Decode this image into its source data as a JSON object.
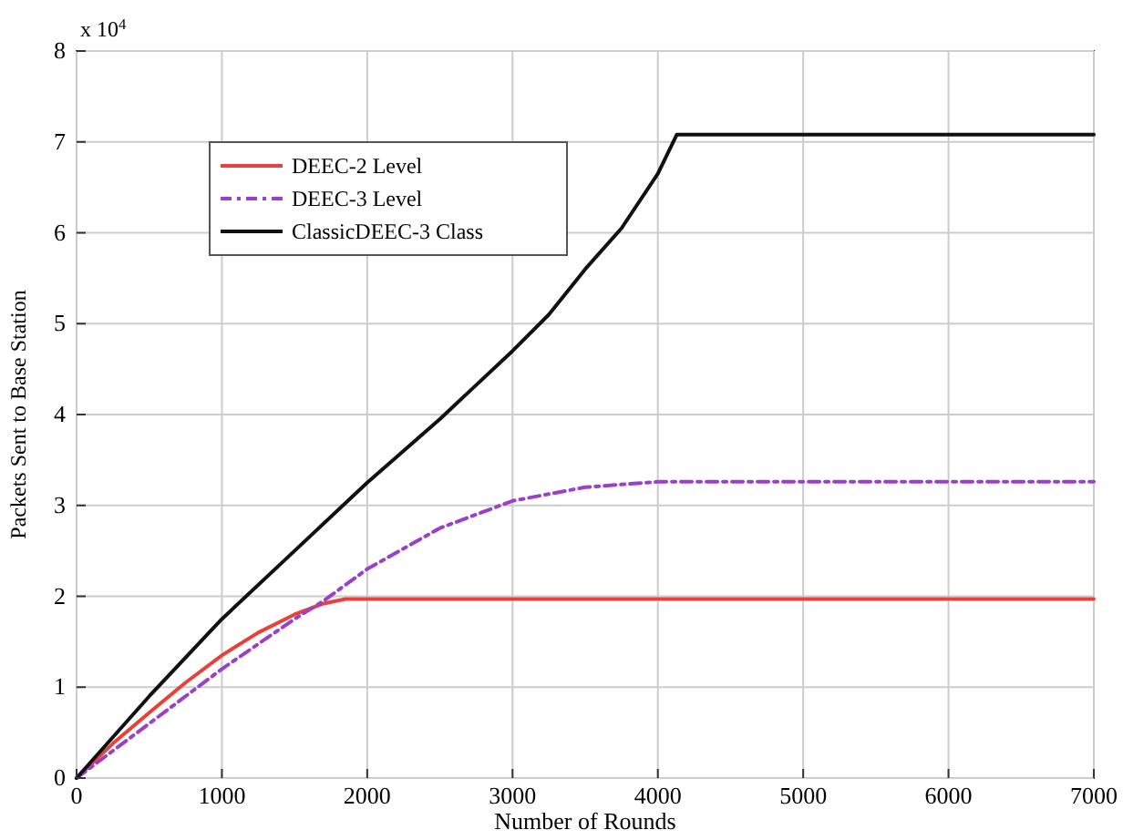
{
  "chart_data": {
    "type": "line",
    "xlabel": "Number of Rounds",
    "ylabel": "Packets Sent to Base Station",
    "annotations": [
      "x 10$^{4}$"
    ],
    "xlim": [
      0,
      7000
    ],
    "xticks": [
      0,
      1000,
      2000,
      3000,
      4000,
      5000,
      6000,
      7000
    ],
    "ylim": [
      0,
      8
    ],
    "yticks": [
      0,
      1,
      2,
      3,
      4,
      5,
      6,
      7,
      8
    ],
    "grid": true,
    "legend": "top left",
    "series": [
      {
        "name": "DEEC-2 Level",
        "color": "#e8403a",
        "line_style": "solid",
        "x": [
          0,
          250,
          500,
          750,
          1000,
          1250,
          1500,
          1700,
          1850,
          2000,
          7000
        ],
        "values": [
          0,
          0.38,
          0.72,
          1.05,
          1.35,
          1.6,
          1.8,
          1.92,
          1.97,
          1.97,
          1.97
        ]
      },
      {
        "name": "DEEC-3 Level",
        "color": "#9b40c8",
        "line_style": "dashed",
        "x": [
          0,
          500,
          1000,
          1500,
          1700,
          2000,
          2500,
          3000,
          3500,
          4000,
          7000
        ],
        "values": [
          0,
          0.6,
          1.2,
          1.75,
          1.95,
          2.3,
          2.75,
          3.05,
          3.2,
          3.26,
          3.26
        ]
      },
      {
        "name": "ClassicDEEC-3 Class",
        "color": "#111111",
        "line_style": "solid",
        "x": [
          0,
          500,
          1000,
          1500,
          2000,
          2500,
          3000,
          3250,
          3500,
          3750,
          4000,
          4130,
          7000
        ],
        "values": [
          0,
          0.9,
          1.75,
          2.5,
          3.25,
          3.95,
          4.7,
          5.1,
          5.6,
          6.05,
          6.65,
          7.08,
          7.08
        ]
      }
    ]
  }
}
